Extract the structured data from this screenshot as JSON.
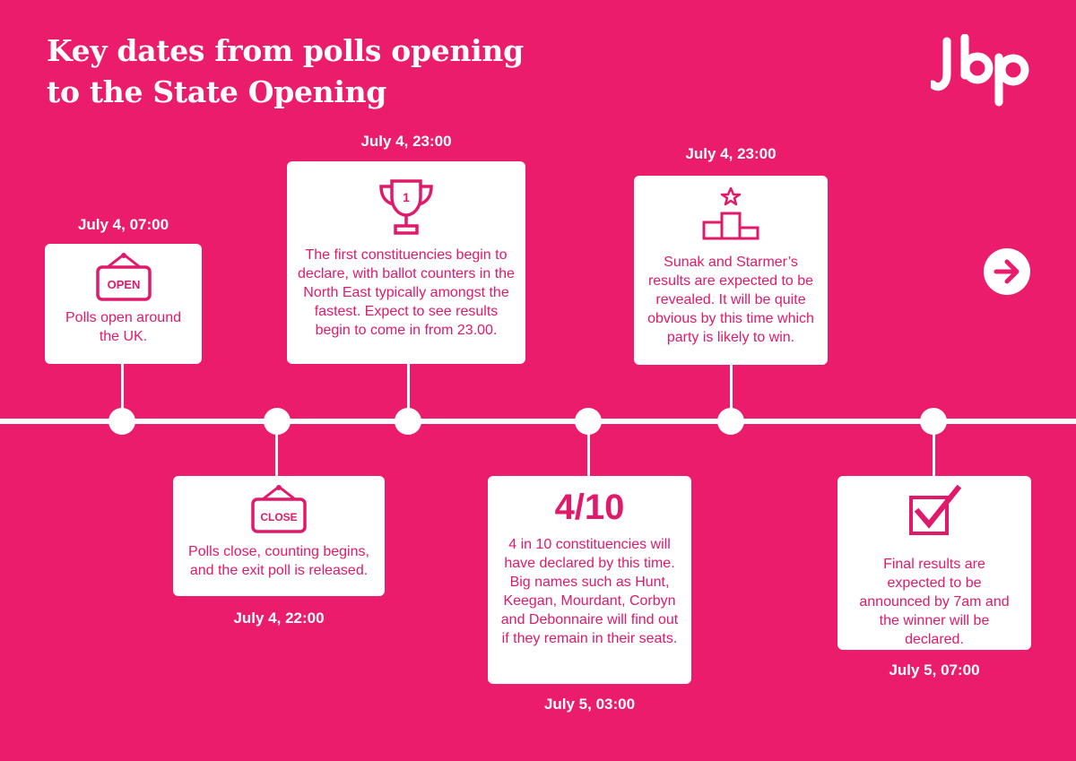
{
  "title_line1": "Key dates from polls opening",
  "title_line2": "to the State Opening",
  "logo_text": "Jbp",
  "next_icon": "arrow-right-icon",
  "events": [
    {
      "date": "July 4, 07:00",
      "icon": "open-sign-icon",
      "sign_text": "OPEN",
      "text": "Polls open around the UK."
    },
    {
      "date": "July 4, 22:00",
      "icon": "close-sign-icon",
      "sign_text": "CLOSE",
      "text": "Polls close, counting begins, and the exit poll is released."
    },
    {
      "date": "July 4, 23:00",
      "icon": "trophy-icon",
      "trophy_text": "1",
      "text": "The first constituencies begin to declare, with ballot counters in the North East typically amongst the fastest. Expect to see results begin to come in from 23.00."
    },
    {
      "date": "July 5, 03:00",
      "headline": "4/10",
      "text": "4 in 10 constituencies will have declared by this time. Big names such as Hunt, Keegan, Mourdant, Corbyn and Debonnaire will find out if they remain in their seats."
    },
    {
      "date": "July 4, 23:00",
      "icon": "podium-icon",
      "text": "Sunak and Starmer’s results are expected to be revealed. It will be quite obvious by this time which party is likely to win."
    },
    {
      "date": "July 5, 07:00",
      "icon": "checkbox-icon",
      "text": "Final results are expected to be announced by 7am and the winner will be declared."
    }
  ],
  "colors": {
    "background": "#ec1c6c",
    "card": "#ffffff",
    "accent": "#e0196a"
  }
}
